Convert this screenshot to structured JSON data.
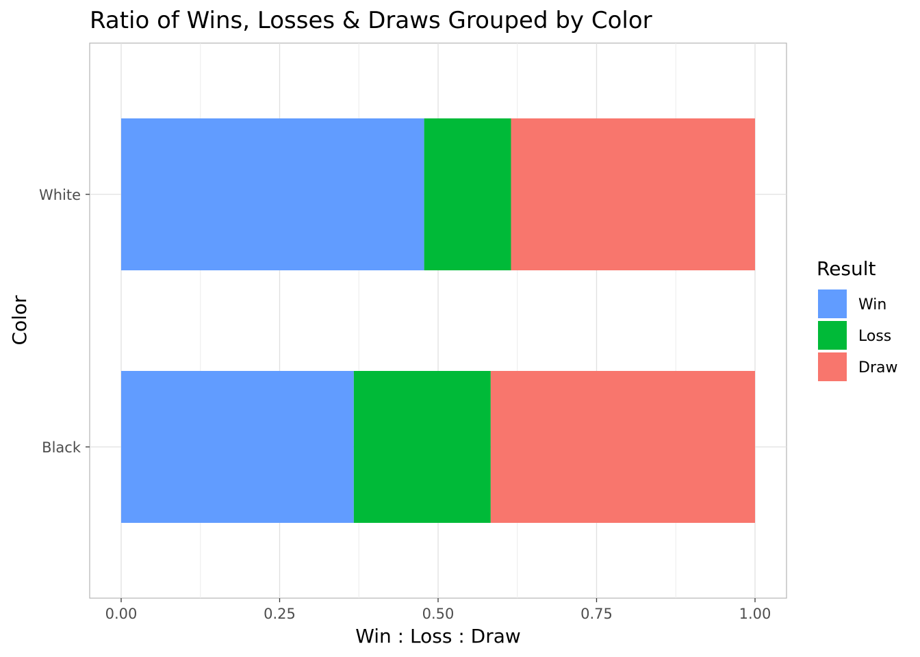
{
  "chart_data": {
    "type": "bar",
    "orientation": "horizontal",
    "stacked": true,
    "title": "Ratio of Wins, Losses & Draws Grouped by Color",
    "xlabel": "Win : Loss : Draw",
    "ylabel": "Color",
    "xlim": [
      0,
      1
    ],
    "x_ticks": [
      0,
      0.25,
      0.5,
      0.75,
      1
    ],
    "x_tick_labels": [
      "0.00",
      "0.25",
      "0.50",
      "0.75",
      "1.00"
    ],
    "categories": [
      "Black",
      "White"
    ],
    "series": [
      {
        "name": "Win",
        "color": "#619CFF",
        "values": [
          0.367,
          0.478
        ]
      },
      {
        "name": "Loss",
        "color": "#00BA38",
        "values": [
          0.216,
          0.137
        ]
      },
      {
        "name": "Draw",
        "color": "#F8766D",
        "values": [
          0.417,
          0.385
        ]
      }
    ],
    "legend": {
      "title": "Result",
      "position": "right"
    },
    "grid": true
  }
}
